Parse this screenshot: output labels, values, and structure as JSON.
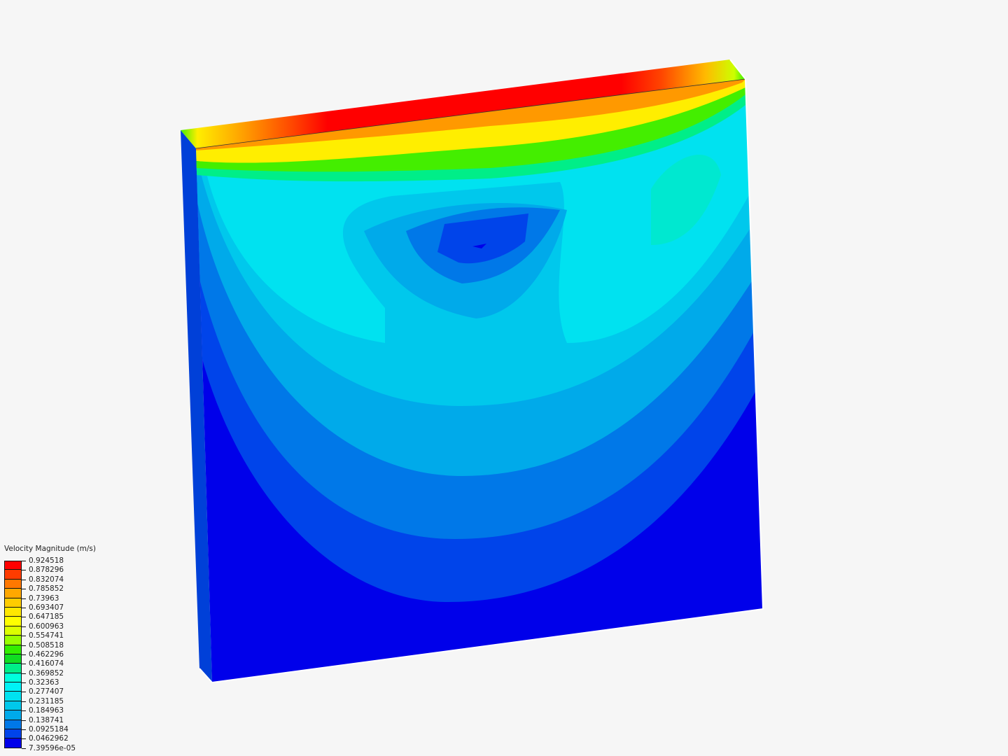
{
  "legend": {
    "title": "Velocity Magnitude (m/s)",
    "labels": [
      "0.924518",
      "0.878296",
      "0.832074",
      "0.785852",
      "0.73963",
      "0.693407",
      "0.647185",
      "0.600963",
      "0.554741",
      "0.508518",
      "0.462296",
      "0.416074",
      "0.369852",
      "0.32363",
      "0.277407",
      "0.231185",
      "0.184963",
      "0.138741",
      "0.0925184",
      "0.0462962",
      "7.39596e-05"
    ],
    "colors": [
      "#ff0000",
      "#ff3c00",
      "#ff7800",
      "#ffa800",
      "#ffcc00",
      "#ffe800",
      "#ffff00",
      "#ddff00",
      "#99ff00",
      "#33ee00",
      "#11dd22",
      "#00ee88",
      "#00ffdd",
      "#00f2f6",
      "#00e2f0",
      "#00c8ec",
      "#00aaea",
      "#0078e8",
      "#0044ea",
      "#0000ea"
    ]
  }
}
